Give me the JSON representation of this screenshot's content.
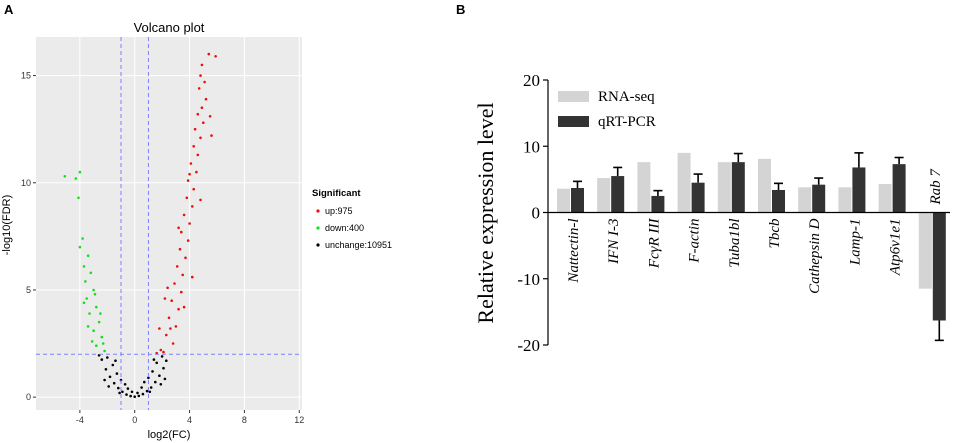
{
  "colors": {
    "up": "#e8100c",
    "down": "#11e01a",
    "unchange": "#000000",
    "threshold": "#8080ff",
    "rnaseq": "#d4d4d4",
    "qrtpcr": "#333333"
  },
  "panels": {
    "a_label": "A",
    "b_label": "B"
  },
  "chart_data": [
    {
      "type": "scatter",
      "title": "Volcano plot",
      "xlabel": "log2(FC)",
      "ylabel": "-log10(FDR)",
      "xlim": [
        -7.2,
        12.2
      ],
      "ylim": [
        -0.6,
        16.8
      ],
      "xticks": [
        -4,
        0,
        4,
        8,
        12
      ],
      "xtick_labels": [
        "-4",
        "0",
        "4",
        "8",
        "12"
      ],
      "yticks": [
        0,
        5,
        10,
        15
      ],
      "ytick_labels": [
        "0",
        "5",
        "10",
        "15"
      ],
      "thresholds": {
        "x": [
          -1,
          1
        ],
        "y": 2
      },
      "legend": {
        "title": "Significant",
        "position": "right",
        "items": [
          {
            "key": "up",
            "label": "up:975"
          },
          {
            "key": "down",
            "label": "down:400"
          },
          {
            "key": "unchange",
            "label": "unchange:10951"
          }
        ]
      },
      "series": [
        {
          "name": "up",
          "points": [
            [
              5.4,
              16
            ],
            [
              5.9,
              15.9
            ],
            [
              4.9,
              15.5
            ],
            [
              4.8,
              15
            ],
            [
              5.1,
              14.7
            ],
            [
              4.7,
              14.4
            ],
            [
              5.2,
              13.9
            ],
            [
              4.9,
              13.5
            ],
            [
              4.6,
              13.2
            ],
            [
              5.0,
              12.8
            ],
            [
              4.4,
              12.5
            ],
            [
              4.8,
              12.1
            ],
            [
              4.3,
              11.7
            ],
            [
              4.6,
              11.3
            ],
            [
              4.1,
              10.9
            ],
            [
              4.5,
              10.5
            ],
            [
              3.9,
              10.1
            ],
            [
              4.3,
              9.7
            ],
            [
              3.8,
              9.3
            ],
            [
              4.2,
              8.9
            ],
            [
              3.6,
              8.5
            ],
            [
              4.0,
              8.1
            ],
            [
              3.4,
              7.7
            ],
            [
              3.9,
              7.3
            ],
            [
              3.3,
              6.9
            ],
            [
              3.7,
              6.5
            ],
            [
              3.1,
              6.1
            ],
            [
              3.5,
              5.7
            ],
            [
              2.9,
              5.3
            ],
            [
              3.4,
              4.9
            ],
            [
              2.7,
              4.5
            ],
            [
              3.2,
              4.1
            ],
            [
              2.5,
              3.7
            ],
            [
              3.0,
              3.3
            ],
            [
              2.3,
              2.9
            ],
            [
              2.8,
              2.5
            ],
            [
              2.1,
              2.1
            ],
            [
              4.2,
              5.6
            ],
            [
              3.6,
              4.2
            ],
            [
              2.6,
              3.2
            ],
            [
              1.9,
              2.2
            ],
            [
              1.6,
              2.05
            ],
            [
              4.8,
              9.2
            ],
            [
              3.2,
              7.9
            ],
            [
              2.4,
              5.1
            ],
            [
              5.6,
              12.2
            ],
            [
              1.8,
              3.2
            ],
            [
              2.2,
              4.6
            ],
            [
              4.0,
              10.4
            ],
            [
              5.5,
              13.1
            ]
          ]
        },
        {
          "name": "down",
          "points": [
            [
              -5.1,
              10.3
            ],
            [
              -4.0,
              10.5
            ],
            [
              -4.3,
              10.2
            ],
            [
              -4.1,
              9.3
            ],
            [
              -3.8,
              7.4
            ],
            [
              -4.0,
              7.0
            ],
            [
              -3.4,
              6.6
            ],
            [
              -3.7,
              6.1
            ],
            [
              -3.2,
              5.8
            ],
            [
              -3.6,
              5.4
            ],
            [
              -3.0,
              5.0
            ],
            [
              -3.5,
              4.6
            ],
            [
              -2.8,
              4.2
            ],
            [
              -3.3,
              3.9
            ],
            [
              -2.6,
              3.5
            ],
            [
              -3.0,
              3.1
            ],
            [
              -2.4,
              2.8
            ],
            [
              -2.8,
              2.4
            ],
            [
              -2.2,
              2.15
            ],
            [
              -3.1,
              2.6
            ],
            [
              -2.5,
              3.9
            ],
            [
              -3.4,
              3.3
            ],
            [
              -2.9,
              4.8
            ],
            [
              -3.7,
              4.4
            ],
            [
              -2.3,
              2.5
            ]
          ]
        },
        {
          "name": "unchange",
          "points": [
            [
              0,
              0.02
            ],
            [
              -0.3,
              0.05
            ],
            [
              0.3,
              0.06
            ],
            [
              -0.6,
              0.12
            ],
            [
              0.6,
              0.14
            ],
            [
              -0.9,
              0.25
            ],
            [
              0.9,
              0.28
            ],
            [
              -1.2,
              0.42
            ],
            [
              1.2,
              0.45
            ],
            [
              -1.5,
              0.65
            ],
            [
              1.5,
              0.7
            ],
            [
              -1.8,
              0.95
            ],
            [
              1.8,
              1.0
            ],
            [
              -2.1,
              1.3
            ],
            [
              2.1,
              1.35
            ],
            [
              -2.4,
              1.75
            ],
            [
              2.3,
              1.7
            ],
            [
              -1.0,
              0.8
            ],
            [
              1.0,
              0.9
            ],
            [
              -1.6,
              1.5
            ],
            [
              1.6,
              1.6
            ],
            [
              -0.5,
              0.4
            ],
            [
              0.5,
              0.45
            ],
            [
              -2.0,
              1.85
            ],
            [
              2.0,
              1.9
            ],
            [
              -1.3,
              1.1
            ],
            [
              1.3,
              1.2
            ],
            [
              -0.2,
              0.25
            ],
            [
              0.2,
              0.2
            ],
            [
              -2.6,
              1.95
            ],
            [
              -2.2,
              0.8
            ],
            [
              2.2,
              0.85
            ],
            [
              -1.9,
              0.5
            ],
            [
              1.9,
              0.6
            ],
            [
              -1.1,
              0.2
            ],
            [
              1.1,
              0.25
            ],
            [
              -0.7,
              0.6
            ],
            [
              0.7,
              0.7
            ],
            [
              -1.4,
              1.7
            ],
            [
              1.4,
              1.75
            ]
          ]
        }
      ]
    },
    {
      "type": "bar",
      "ylabel": "Relative expression level",
      "ylim": [
        -20,
        20
      ],
      "yticks": [
        20,
        10,
        0,
        -10,
        -20
      ],
      "ytick_labels": [
        "20",
        "10",
        "0",
        "-10",
        "-20"
      ],
      "legend": {
        "position": "top-left"
      },
      "categories": [
        "Nattectin-l",
        "IFN I-3",
        "FcγR III",
        "F-actin",
        "Tuba1bl",
        "Tbcb",
        "Cathepsin D",
        "Lamp-1",
        "Atp6v1e1",
        "Rab 7"
      ],
      "series": [
        {
          "name": "RNA-seq",
          "values": [
            3.6,
            5.2,
            7.6,
            9.0,
            7.6,
            8.1,
            3.8,
            3.8,
            4.3,
            -11.5
          ],
          "errors": [
            0,
            0,
            0,
            0,
            0,
            0,
            0,
            0,
            0,
            0
          ]
        },
        {
          "name": "qRT-PCR",
          "values": [
            3.7,
            5.5,
            2.5,
            4.5,
            7.6,
            3.4,
            4.2,
            6.8,
            7.3,
            -16.3
          ],
          "errors": [
            1.0,
            1.3,
            0.8,
            1.3,
            1.3,
            1.0,
            1.0,
            2.2,
            1.0,
            3.0
          ]
        }
      ]
    }
  ]
}
